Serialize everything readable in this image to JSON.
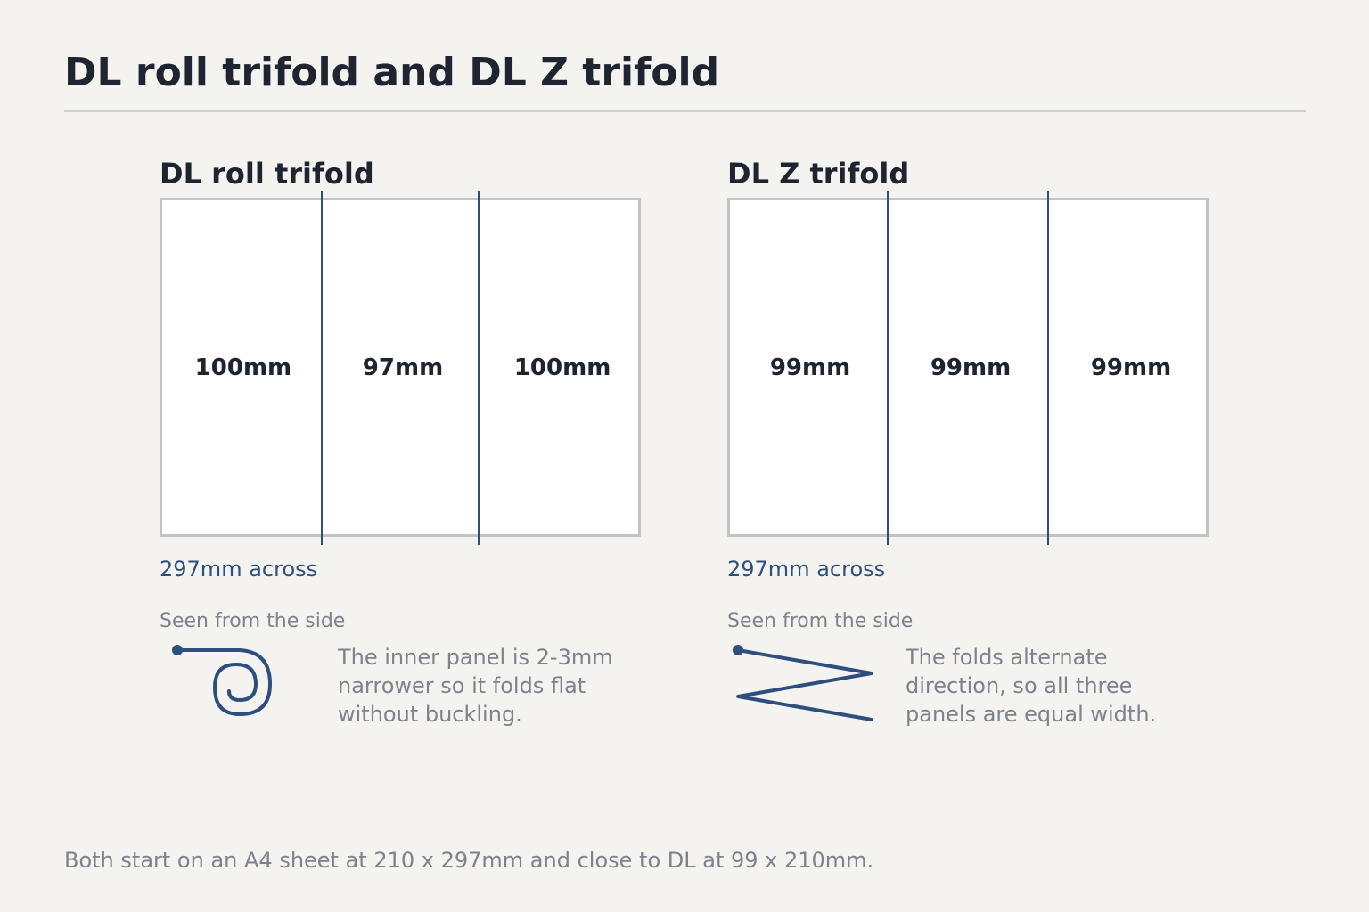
{
  "title": "DL roll trifold and DL Z trifold",
  "diagrams": {
    "roll": {
      "title": "DL roll trifold",
      "panels": [
        "100mm",
        "97mm",
        "100mm"
      ],
      "panel_widths_mm": [
        100,
        97,
        100
      ],
      "across": "297mm across",
      "side_label": "Seen from the side",
      "side_icon": "roll-fold-spiral-icon",
      "note": "The inner panel is 2-3mm narrower so it folds flat without buckling."
    },
    "z": {
      "title": "DL Z trifold",
      "panels": [
        "99mm",
        "99mm",
        "99mm"
      ],
      "panel_widths_mm": [
        99,
        99,
        99
      ],
      "across": "297mm across",
      "side_label": "Seen from the side",
      "side_icon": "z-fold-zigzag-icon",
      "note": "The folds alternate direction, so all three panels are equal width."
    }
  },
  "footer": "Both start on an A4 sheet at 210 x 297mm and close to DL at 99 x 210mm.",
  "colors": {
    "background": "#f4f3f0",
    "fold_line": "#2e4f7e",
    "text_dark": "#1e2430",
    "text_muted": "#7d828c",
    "sheet_border": "#c2c4c8"
  }
}
